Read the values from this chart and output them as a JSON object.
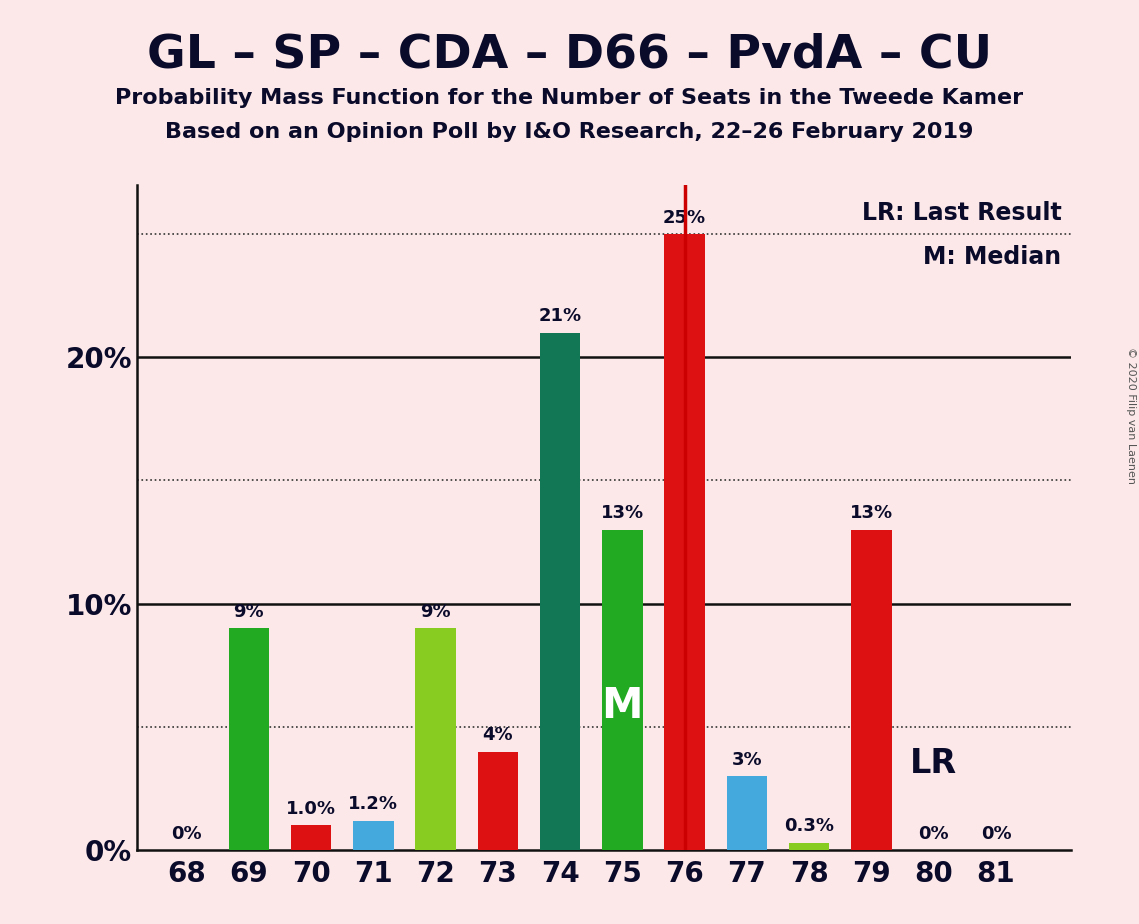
{
  "title": "GL – SP – CDA – D66 – PvdA – CU",
  "subtitle1": "Probability Mass Function for the Number of Seats in the Tweede Kamer",
  "subtitle2": "Based on an Opinion Poll by I&O Research, 22–26 February 2019",
  "copyright": "© 2020 Filip van Laenen",
  "seats": [
    68,
    69,
    70,
    71,
    72,
    73,
    74,
    75,
    76,
    77,
    78,
    79,
    80,
    81
  ],
  "values": [
    0.0,
    9.0,
    1.0,
    1.2,
    9.0,
    4.0,
    21.0,
    13.0,
    25.0,
    3.0,
    0.3,
    13.0,
    0.0,
    0.0
  ],
  "labels": [
    "0%",
    "9%",
    "1.0%",
    "1.2%",
    "9%",
    "4%",
    "21%",
    "13%",
    "25%",
    "3%",
    "0.3%",
    "13%",
    "0%",
    "0%"
  ],
  "colors": [
    "#22aa22",
    "#22aa22",
    "#dd1111",
    "#44aadd",
    "#88cc22",
    "#dd1111",
    "#117755",
    "#22aa22",
    "#dd1111",
    "#44aadd",
    "#88cc22",
    "#dd1111",
    "#dd1111",
    "#dd1111"
  ],
  "background_color": "#fce8e8",
  "lr_seat": 76,
  "median_seat": 75,
  "median_label": "M",
  "lr_legend": "LR: Last Result",
  "m_legend": "M: Median",
  "lr_bar_label": "LR",
  "ylim": [
    0,
    27
  ],
  "solid_lines": [
    10,
    20
  ],
  "dotted_lines": [
    5,
    15,
    25
  ],
  "ytick_positions": [
    0,
    10,
    20
  ],
  "ytick_labels": [
    "0%",
    "10%",
    "20%"
  ]
}
